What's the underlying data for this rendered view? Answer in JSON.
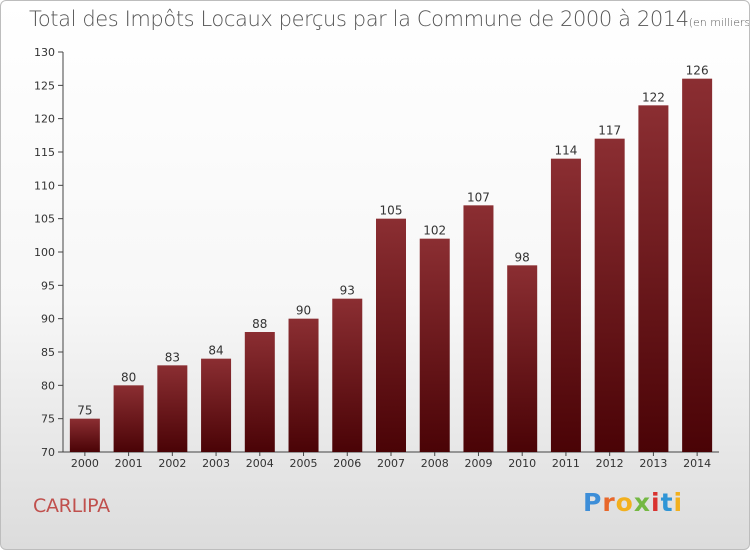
{
  "title": "Total des Impôts Locaux perçus par la Commune de 2000 à 2014",
  "unit_label": "(en milliers d'€)",
  "commune": "CARLIPA",
  "logo": {
    "text": "Proxiti",
    "letter_colors": [
      "#3d8ed8",
      "#e8672a",
      "#f2b01e",
      "#74b843",
      "#d9322f",
      "#2f95d6",
      "#f2b01e"
    ]
  },
  "chart_data": {
    "type": "bar",
    "title": "Total des Impôts Locaux perçus par la Commune de 2000 à 2014",
    "xlabel": "",
    "ylabel": "",
    "categories": [
      "2000",
      "2001",
      "2002",
      "2003",
      "2004",
      "2005",
      "2006",
      "2007",
      "2008",
      "2009",
      "2010",
      "2011",
      "2012",
      "2013",
      "2014"
    ],
    "values": [
      75,
      80,
      83,
      84,
      88,
      90,
      93,
      105,
      102,
      107,
      98,
      114,
      117,
      122,
      126
    ],
    "ylim": [
      70,
      130
    ],
    "yticks": [
      70,
      75,
      80,
      85,
      90,
      95,
      100,
      105,
      110,
      115,
      120,
      125,
      130
    ],
    "grid": false,
    "bar_color_top": "#8b2e32",
    "bar_color_bottom": "#4a0306"
  }
}
